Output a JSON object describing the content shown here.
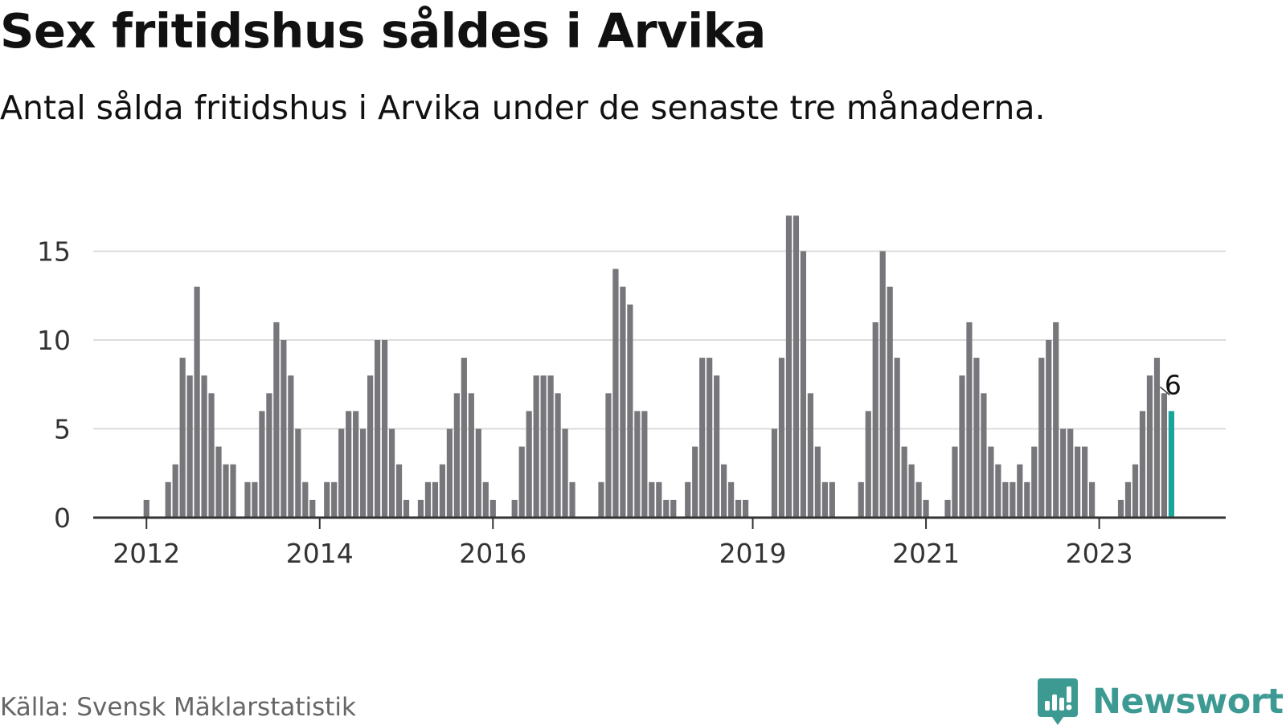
{
  "title": "Sex fritidshus såldes i Arvika",
  "subtitle": "Antal sålda fritidshus i Arvika under de senaste tre månaderna.",
  "source": "Källa: Svensk Mäklarstatistik",
  "brand": {
    "name": "Newsworthy",
    "icon": "newsworthy-logo-icon",
    "color": "#3d9a93"
  },
  "colors": {
    "bar": "#77767b",
    "highlight": "#1aa39a",
    "grid": "#dcdcdc",
    "axis": "#333333"
  },
  "chart_data": {
    "type": "bar",
    "title": "Sex fritidshus såldes i Arvika",
    "subtitle": "Antal sålda fritidshus i Arvika under de senaste tre månaderna.",
    "start": "2011-05",
    "values": [
      0,
      0,
      0,
      0,
      0,
      0,
      0,
      0,
      1,
      0,
      0,
      2,
      3,
      9,
      8,
      13,
      8,
      7,
      4,
      3,
      3,
      0,
      2,
      2,
      6,
      7,
      11,
      10,
      8,
      5,
      2,
      1,
      0,
      2,
      2,
      5,
      6,
      6,
      5,
      8,
      10,
      10,
      5,
      3,
      1,
      0,
      1,
      2,
      2,
      3,
      5,
      7,
      9,
      7,
      5,
      2,
      1,
      0,
      0,
      1,
      4,
      6,
      8,
      8,
      8,
      7,
      5,
      2,
      0,
      0,
      0,
      2,
      7,
      14,
      13,
      12,
      6,
      6,
      2,
      2,
      1,
      1,
      0,
      2,
      4,
      9,
      9,
      8,
      3,
      2,
      1,
      1,
      0,
      0,
      0,
      5,
      9,
      17,
      17,
      15,
      7,
      4,
      2,
      2,
      0,
      0,
      0,
      2,
      6,
      11,
      15,
      13,
      9,
      4,
      3,
      2,
      1,
      0,
      0,
      1,
      4,
      8,
      11,
      9,
      7,
      4,
      3,
      2,
      2,
      3,
      2,
      4,
      9,
      10,
      11,
      5,
      5,
      4,
      4,
      2,
      0,
      0,
      0,
      1,
      2,
      3,
      6,
      8,
      9,
      7,
      6
    ],
    "highlight_last": true,
    "annotation": "6",
    "xticks": [
      "2012",
      "2014",
      "2016",
      "2019",
      "2021",
      "2023"
    ],
    "xtick_positions": [
      "2012-01",
      "2014-01",
      "2016-01",
      "2019-01",
      "2021-01",
      "2023-01"
    ],
    "yticks": [
      0,
      5,
      10,
      15
    ],
    "ylim": [
      0,
      17
    ],
    "grid": true,
    "xlabel": "",
    "ylabel": ""
  }
}
